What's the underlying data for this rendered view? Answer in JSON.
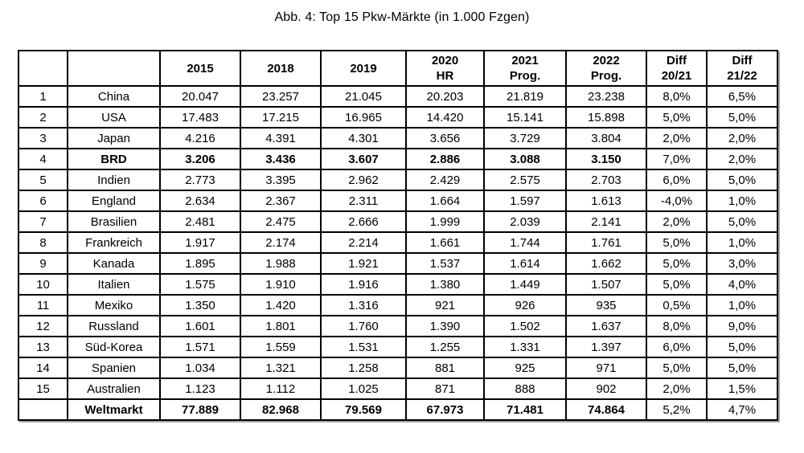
{
  "title": "Abb. 4: Top 15 Pkw-Märkte (in 1.000 Fzgen)",
  "highlight_color": "#FFFFC8",
  "chart_data": {
    "type": "table",
    "title": "Abb. 4: Top 15 Pkw-Märkte (in 1.000 Fzgen)",
    "columns": [
      {
        "label": "2015",
        "sub": "",
        "highlight": false,
        "small": false
      },
      {
        "label": "2018",
        "sub": "",
        "highlight": false,
        "small": false
      },
      {
        "label": "2019",
        "sub": "",
        "highlight": false,
        "small": false
      },
      {
        "label": "2020",
        "sub": "HR",
        "highlight": true,
        "small": false
      },
      {
        "label": "2021",
        "sub": "Prog.",
        "highlight": true,
        "small": false
      },
      {
        "label": "2022",
        "sub": "Prog.",
        "highlight": true,
        "small": false
      },
      {
        "label": "Diff",
        "sub": "20/21",
        "highlight": true,
        "small": true
      },
      {
        "label": "Diff",
        "sub": "21/22",
        "highlight": true,
        "small": true
      }
    ],
    "rows": [
      {
        "rank": "1",
        "country": "China",
        "bold": false,
        "values": [
          "20.047",
          "23.257",
          "21.045",
          "20.203",
          "21.819",
          "23.238",
          "8,0%",
          "6,5%"
        ]
      },
      {
        "rank": "2",
        "country": "USA",
        "bold": false,
        "values": [
          "17.483",
          "17.215",
          "16.965",
          "14.420",
          "15.141",
          "15.898",
          "5,0%",
          "5,0%"
        ]
      },
      {
        "rank": "3",
        "country": "Japan",
        "bold": false,
        "values": [
          "4.216",
          "4.391",
          "4.301",
          "3.656",
          "3.729",
          "3.804",
          "2,0%",
          "2,0%"
        ]
      },
      {
        "rank": "4",
        "country": "BRD",
        "bold": true,
        "values": [
          "3.206",
          "3.436",
          "3.607",
          "2.886",
          "3.088",
          "3.150",
          "7,0%",
          "2,0%"
        ]
      },
      {
        "rank": "5",
        "country": "Indien",
        "bold": false,
        "values": [
          "2.773",
          "3.395",
          "2.962",
          "2.429",
          "2.575",
          "2.703",
          "6,0%",
          "5,0%"
        ]
      },
      {
        "rank": "6",
        "country": "England",
        "bold": false,
        "values": [
          "2.634",
          "2.367",
          "2.311",
          "1.664",
          "1.597",
          "1.613",
          "-4,0%",
          "1,0%"
        ]
      },
      {
        "rank": "7",
        "country": "Brasilien",
        "bold": false,
        "values": [
          "2.481",
          "2.475",
          "2.666",
          "1.999",
          "2.039",
          "2.141",
          "2,0%",
          "5,0%"
        ]
      },
      {
        "rank": "8",
        "country": "Frankreich",
        "bold": false,
        "values": [
          "1.917",
          "2.174",
          "2.214",
          "1.661",
          "1.744",
          "1.761",
          "5,0%",
          "1,0%"
        ]
      },
      {
        "rank": "9",
        "country": "Kanada",
        "bold": false,
        "values": [
          "1.895",
          "1.988",
          "1.921",
          "1.537",
          "1.614",
          "1.662",
          "5,0%",
          "3,0%"
        ]
      },
      {
        "rank": "10",
        "country": "Italien",
        "bold": false,
        "values": [
          "1.575",
          "1.910",
          "1.916",
          "1.380",
          "1.449",
          "1.507",
          "5,0%",
          "4,0%"
        ]
      },
      {
        "rank": "11",
        "country": "Mexiko",
        "bold": false,
        "values": [
          "1.350",
          "1.420",
          "1.316",
          "921",
          "926",
          "935",
          "0,5%",
          "1,0%"
        ]
      },
      {
        "rank": "12",
        "country": "Russland",
        "bold": false,
        "values": [
          "1.601",
          "1.801",
          "1.760",
          "1.390",
          "1.502",
          "1.637",
          "8,0%",
          "9,0%"
        ]
      },
      {
        "rank": "13",
        "country": "Süd-Korea",
        "bold": false,
        "values": [
          "1.571",
          "1.559",
          "1.531",
          "1.255",
          "1.331",
          "1.397",
          "6,0%",
          "5,0%"
        ]
      },
      {
        "rank": "14",
        "country": "Spanien",
        "bold": false,
        "values": [
          "1.034",
          "1.321",
          "1.258",
          "881",
          "925",
          "971",
          "5,0%",
          "5,0%"
        ]
      },
      {
        "rank": "15",
        "country": "Australien",
        "bold": false,
        "values": [
          "1.123",
          "1.112",
          "1.025",
          "871",
          "888",
          "902",
          "2,0%",
          "1,5%"
        ]
      }
    ],
    "total": {
      "label": "Weltmarkt",
      "values": [
        "77.889",
        "82.968",
        "79.569",
        "67.973",
        "71.481",
        "74.864",
        "5,2%",
        "4,7%"
      ]
    }
  }
}
